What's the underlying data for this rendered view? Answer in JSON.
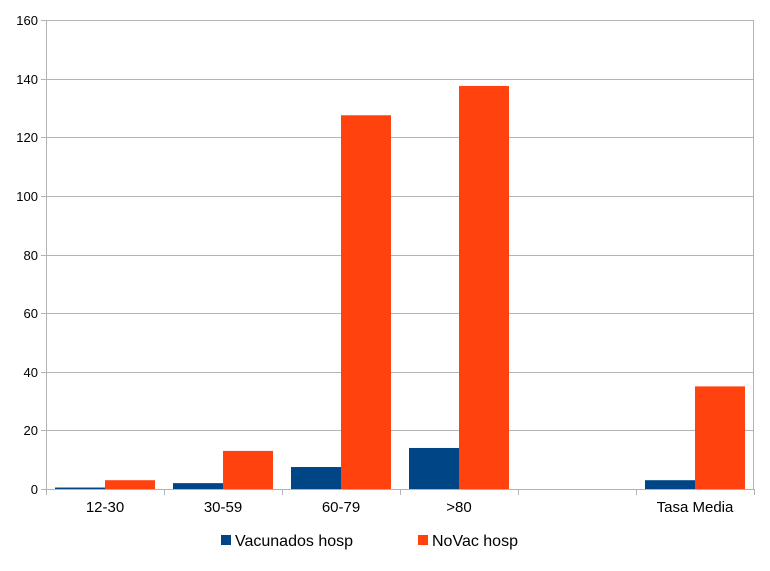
{
  "chart_data": {
    "type": "bar",
    "title": "",
    "xlabel": "",
    "ylabel": "",
    "categories": [
      "12-30",
      "30-59",
      "60-79",
      ">80",
      "",
      "Tasa Media"
    ],
    "series": [
      {
        "name": "Vacunados hosp",
        "color": "#004586",
        "values": [
          0.5,
          2,
          7.5,
          14,
          null,
          3
        ]
      },
      {
        "name": "NoVac hosp",
        "color": "#ff420e",
        "values": [
          3,
          13,
          127.5,
          137.5,
          null,
          35
        ]
      }
    ],
    "ylim": [
      0,
      160
    ],
    "yticks": [
      0,
      20,
      40,
      60,
      80,
      100,
      120,
      140,
      160
    ],
    "grid": true,
    "legend": "bottom"
  }
}
